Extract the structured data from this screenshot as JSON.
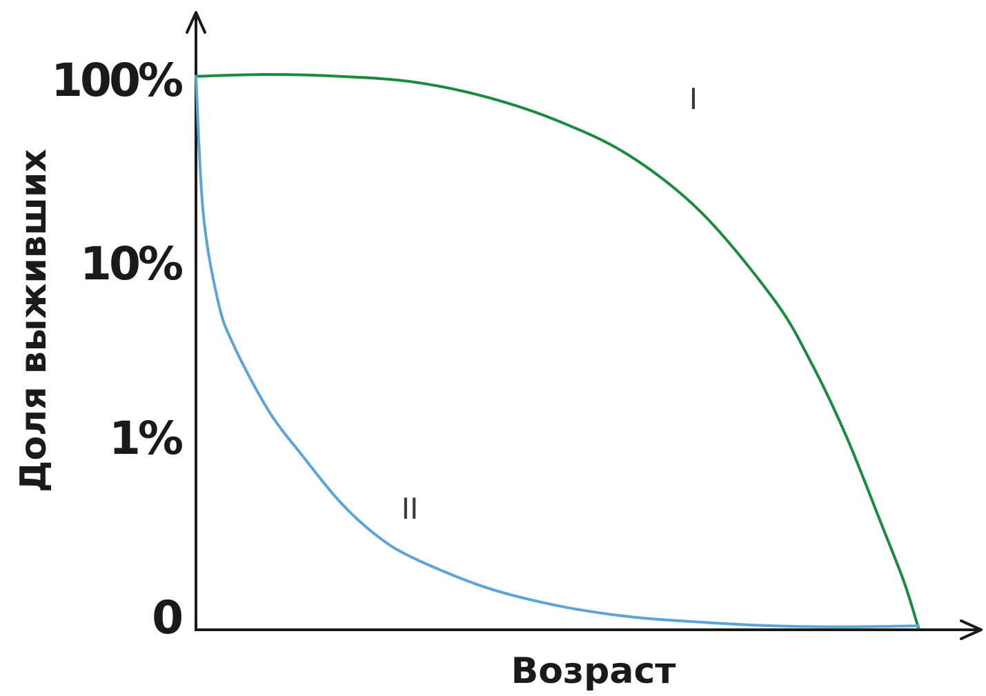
{
  "chart_data": {
    "type": "line",
    "xlabel": "Возраст",
    "ylabel": "Доля выживших",
    "x_range": [
      0,
      100
    ],
    "y_scale": "log",
    "y_ticks": [
      {
        "label": "100%",
        "level": 3
      },
      {
        "label": "10%",
        "level": 2
      },
      {
        "label": "1%",
        "level": 1
      },
      {
        "label": "0",
        "level": 0
      }
    ],
    "grid": false,
    "legend": "none",
    "series": [
      {
        "label": "I",
        "color": "#1a8a3e",
        "x": [
          0,
          10,
          20,
          30,
          40,
          50,
          60,
          70,
          80,
          85,
          90,
          95,
          98,
          100
        ],
        "y": [
          2.99,
          3.0,
          2.99,
          2.96,
          2.88,
          2.75,
          2.56,
          2.25,
          1.78,
          1.45,
          1.04,
          0.55,
          0.25,
          0.0
        ]
      },
      {
        "label": "II",
        "color": "#5ba4d8",
        "x": [
          0,
          1,
          3,
          5,
          10,
          15,
          20,
          25,
          30,
          40,
          50,
          60,
          70,
          80,
          90,
          100
        ],
        "y": [
          2.99,
          2.25,
          1.78,
          1.55,
          1.18,
          0.92,
          0.68,
          0.5,
          0.38,
          0.22,
          0.12,
          0.06,
          0.03,
          0.01,
          0.005,
          0.01
        ]
      }
    ]
  }
}
